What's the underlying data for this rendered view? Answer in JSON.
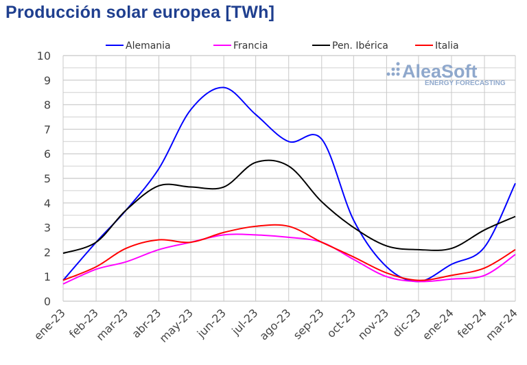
{
  "chart_data": {
    "type": "line",
    "title": "Producción solar europea [TWh]",
    "categories": [
      "ene-23",
      "feb-23",
      "mar-23",
      "abr-23",
      "may-23",
      "jun-23",
      "jul-23",
      "ago-23",
      "sep-23",
      "oct-23",
      "nov-23",
      "dic-23",
      "ene-24",
      "feb-24",
      "mar-24"
    ],
    "ylim": [
      0,
      10
    ],
    "yticks": [
      0,
      1,
      2,
      3,
      4,
      5,
      6,
      7,
      8,
      9,
      10
    ],
    "grid": true,
    "legend": "top",
    "series": [
      {
        "name": "Alemania",
        "color": "#0000ff",
        "values": [
          0.85,
          2.4,
          3.7,
          5.4,
          7.8,
          8.7,
          7.6,
          6.5,
          6.6,
          3.3,
          1.4,
          0.8,
          1.5,
          2.2,
          4.8
        ]
      },
      {
        "name": "Francia",
        "color": "#ff00ff",
        "values": [
          0.7,
          1.3,
          1.6,
          2.1,
          2.4,
          2.7,
          2.7,
          2.6,
          2.4,
          1.7,
          1.0,
          0.8,
          0.9,
          1.05,
          1.9
        ]
      },
      {
        "name": "Pen. Ibérica",
        "color": "#000000",
        "values": [
          1.95,
          2.4,
          3.7,
          4.7,
          4.65,
          4.65,
          5.65,
          5.5,
          4.05,
          3.0,
          2.25,
          2.1,
          2.15,
          2.9,
          3.45
        ]
      },
      {
        "name": "Italia",
        "color": "#ff0000",
        "values": [
          0.85,
          1.4,
          2.15,
          2.5,
          2.4,
          2.8,
          3.05,
          3.05,
          2.4,
          1.8,
          1.15,
          0.85,
          1.05,
          1.35,
          2.1
        ]
      }
    ]
  },
  "watermark": {
    "brand": "AleaSoft",
    "tagline": "ENERGY FORECASTING",
    "color": "#8fa8cc"
  }
}
